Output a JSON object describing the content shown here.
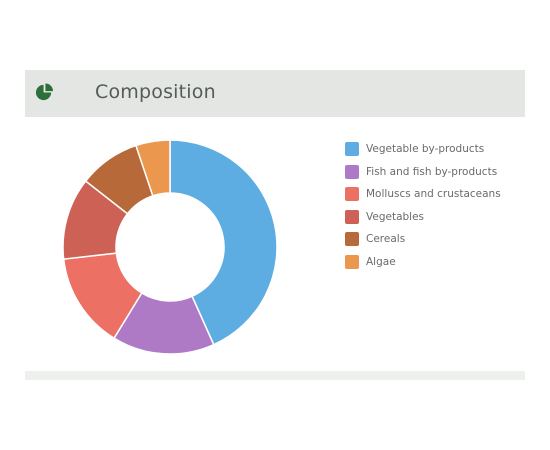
{
  "card": {
    "title": "Composition",
    "icon": "pie-chart-icon",
    "icon_color": "#2e6e3b"
  },
  "chart_data": {
    "type": "pie",
    "donut": true,
    "title": "Composition",
    "legend_position": "right",
    "categories": [
      "Vegetable by-products",
      "Fish and fish by-products",
      "Molluscs and crustaceans",
      "Vegetables",
      "Cereals",
      "Algae"
    ],
    "values": [
      42,
      15,
      14,
      12,
      9,
      5
    ],
    "colors": [
      "#5dade2",
      "#af7ac5",
      "#ec7063",
      "#cd6155",
      "#b7693a",
      "#eb984e"
    ]
  }
}
